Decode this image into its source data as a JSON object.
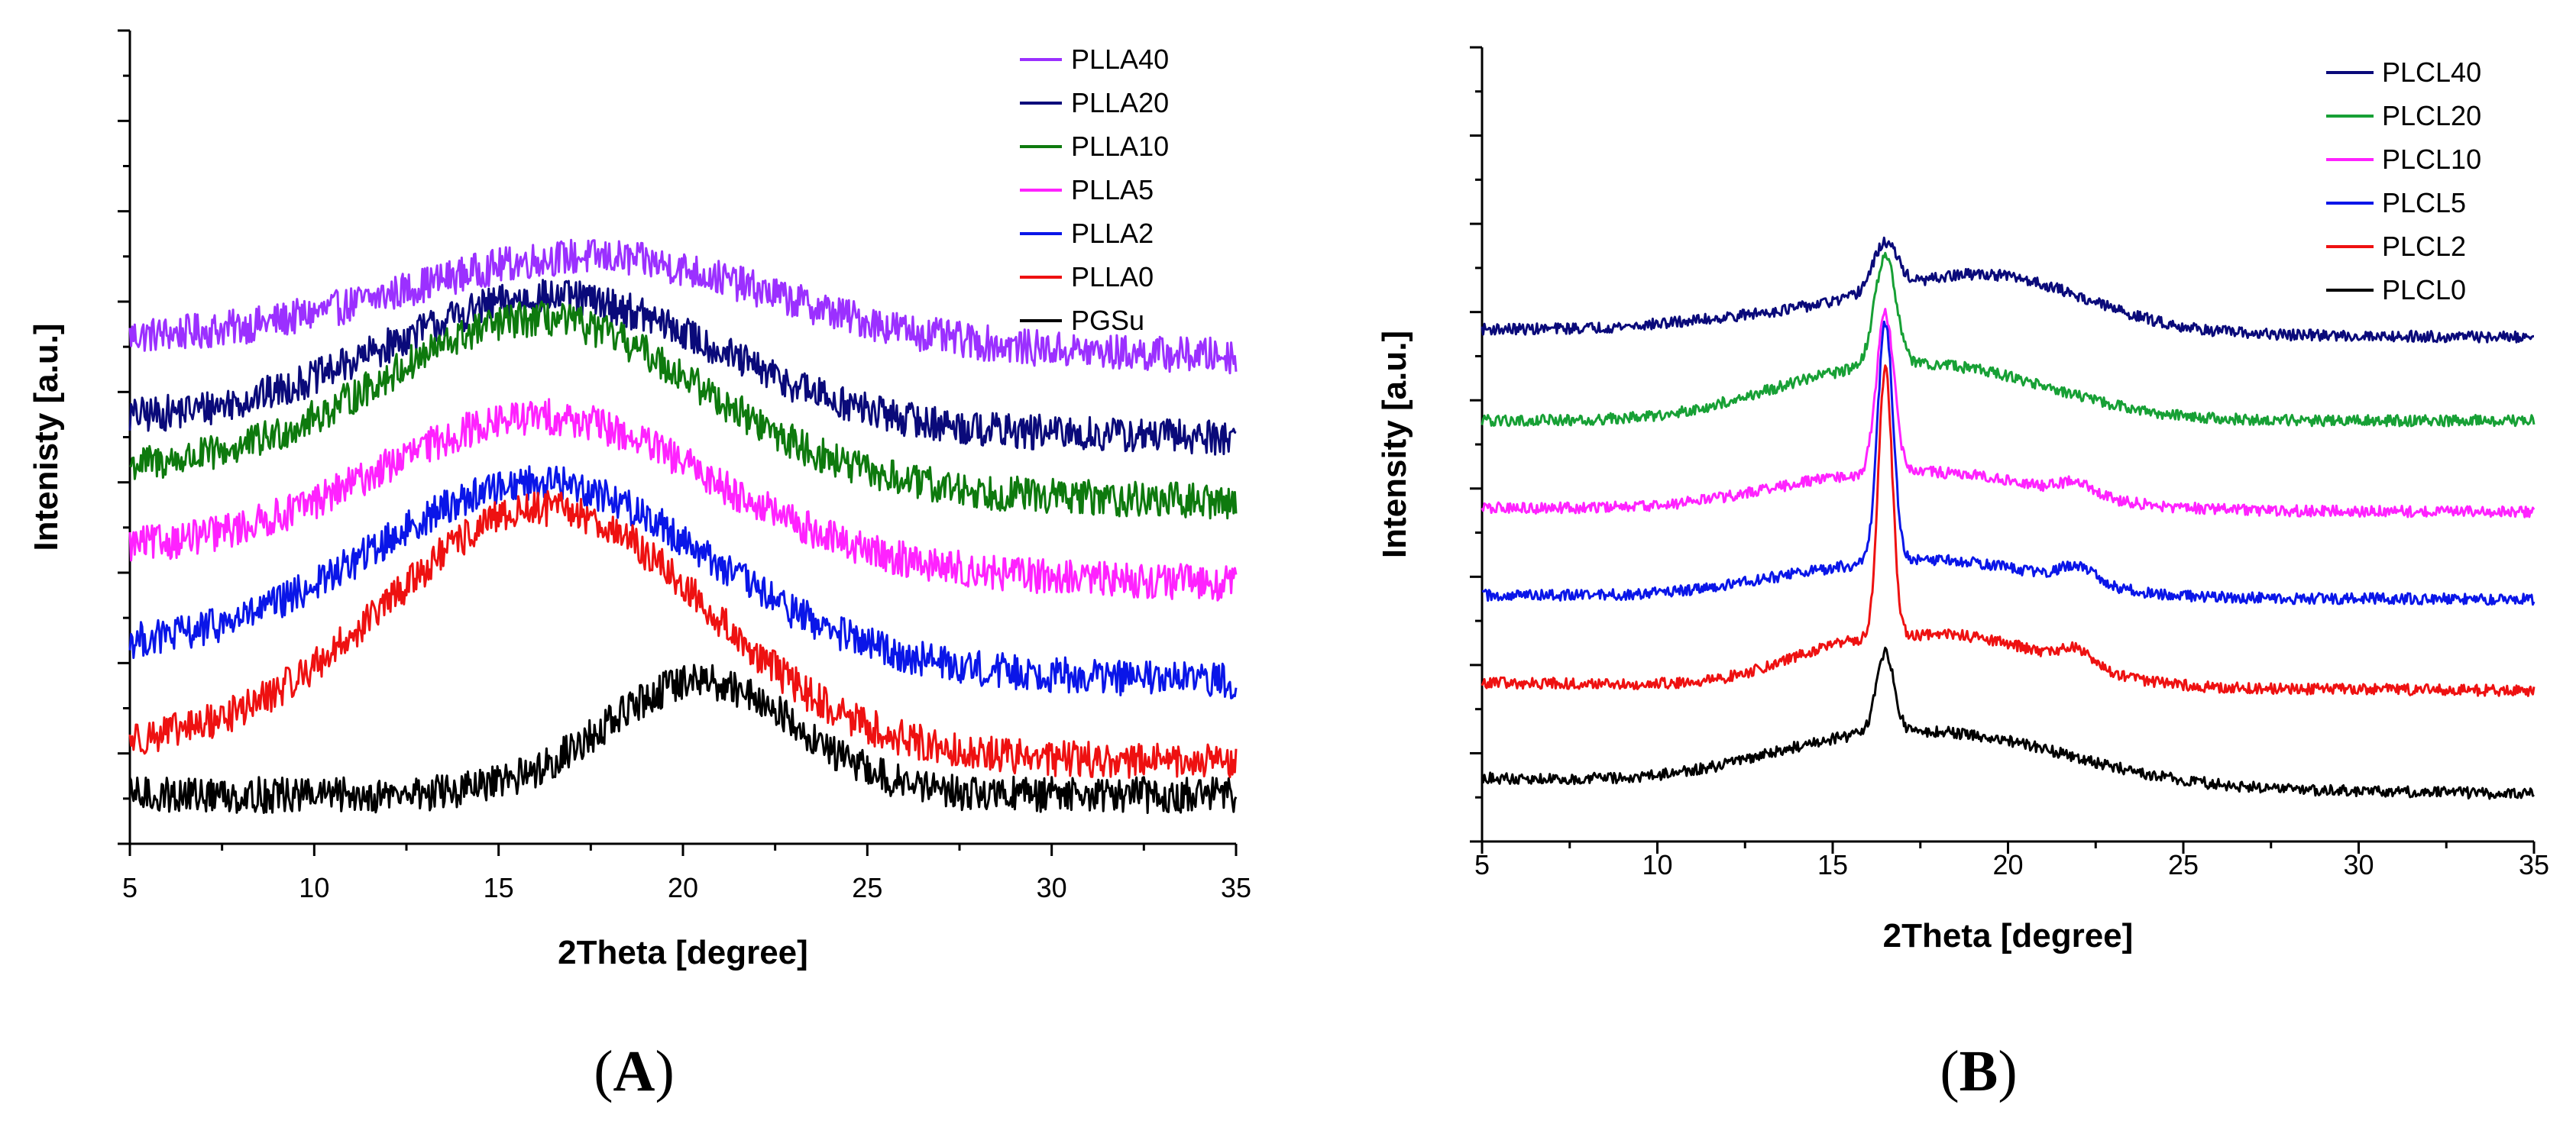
{
  "figure": {
    "panel_labels": [
      {
        "open": "(",
        "letter": "A",
        "close": ")"
      },
      {
        "open": "(",
        "letter": "B",
        "close": ")"
      }
    ]
  },
  "chart_data": [
    {
      "id": "A",
      "type": "line",
      "title": "",
      "xlabel": "2Theta [degree]",
      "ylabel": "Intenisty [a.u.]",
      "xlim": [
        5,
        35
      ],
      "ylim": [
        0,
        100
      ],
      "xticks": [
        5,
        10,
        15,
        20,
        25,
        30,
        35
      ],
      "x_tick_labels": [
        "5",
        "10",
        "15",
        "20",
        "25",
        "30",
        "35"
      ],
      "y_tick_labels_shown": false,
      "legend_position": "top-right",
      "noise": 2.2,
      "series": [
        {
          "name": "PLLA40",
          "color": "#9b30ff",
          "baseline": 66,
          "profile": {
            "start": 62,
            "end": 60,
            "peaks": [
              {
                "center": 17.5,
                "height": 11,
                "width": 5.0
              }
            ]
          }
        },
        {
          "name": "PLLA20",
          "color": "#0a0a7a",
          "baseline": 54,
          "profile": {
            "start": 52,
            "end": 50,
            "peaks": [
              {
                "center": 16.5,
                "height": 16,
                "width": 4.5
              }
            ]
          }
        },
        {
          "name": "PLLA10",
          "color": "#0e7a0e",
          "baseline": 48,
          "profile": {
            "start": 46,
            "end": 42,
            "peaks": [
              {
                "center": 16.2,
                "height": 20,
                "width": 4.3
              }
            ]
          }
        },
        {
          "name": "PLLA5",
          "color": "#ff22ff",
          "baseline": 34,
          "profile": {
            "start": 36,
            "end": 32,
            "peaks": [
              {
                "center": 16.3,
                "height": 18,
                "width": 4.5
              }
            ]
          }
        },
        {
          "name": "PLLA2",
          "color": "#0a16e8",
          "baseline": 22,
          "profile": {
            "start": 24,
            "end": 20,
            "peaks": [
              {
                "center": 16.2,
                "height": 22,
                "width": 4.5
              }
            ]
          }
        },
        {
          "name": "PLLA0",
          "color": "#ee1111",
          "baseline": 10,
          "profile": {
            "start": 12,
            "end": 10,
            "peaks": [
              {
                "center": 16.3,
                "height": 30,
                "width": 4.3
              }
            ]
          }
        },
        {
          "name": "PGSu",
          "color": "#000000",
          "baseline": 0,
          "profile": {
            "start": 6,
            "end": 6,
            "peaks": [
              {
                "center": 20.5,
                "height": 14,
                "width": 2.6
              }
            ]
          }
        }
      ]
    },
    {
      "id": "B",
      "type": "line",
      "title": "",
      "xlabel": "2Theta [degree]",
      "ylabel": "Intensity [a.u.]",
      "xlim": [
        5,
        35
      ],
      "ylim": [
        0,
        100
      ],
      "xticks": [
        5,
        10,
        15,
        20,
        25,
        30,
        35
      ],
      "x_tick_labels": [
        "5",
        "10",
        "15",
        "20",
        "25",
        "30",
        "35"
      ],
      "y_tick_labels_shown": false,
      "legend_position": "top-right",
      "noise": 0.7,
      "series": [
        {
          "name": "PLCL40",
          "color": "#0a0a7a",
          "baseline": 62,
          "profile": {
            "start": 64.5,
            "end": 63.5,
            "peaks": [
              {
                "center": 16.5,
                "height": 6,
                "width": 0.35
              },
              {
                "center": 19.5,
                "height": 7,
                "width": 2.8
              },
              {
                "center": 14,
                "height": 2,
                "width": 3
              }
            ]
          }
        },
        {
          "name": "PLCL20",
          "color": "#17a035",
          "baseline": 50,
          "profile": {
            "start": 53,
            "end": 53,
            "peaks": [
              {
                "center": 16.5,
                "height": 14,
                "width": 0.3
              },
              {
                "center": 18.5,
                "height": 6,
                "width": 3
              },
              {
                "center": 14.5,
                "height": 3,
                "width": 2.5
              }
            ]
          }
        },
        {
          "name": "PLCL10",
          "color": "#ff22ff",
          "baseline": 39,
          "profile": {
            "start": 42,
            "end": 41.5,
            "peaks": [
              {
                "center": 16.5,
                "height": 20,
                "width": 0.25
              },
              {
                "center": 18.5,
                "height": 4,
                "width": 3
              },
              {
                "center": 22,
                "height": 1.5,
                "width": 0.5
              },
              {
                "center": 14.5,
                "height": 2,
                "width": 2.5
              }
            ]
          }
        },
        {
          "name": "PLCL5",
          "color": "#0a16e8",
          "baseline": 28,
          "profile": {
            "start": 31,
            "end": 30.5,
            "peaks": [
              {
                "center": 16.5,
                "height": 30,
                "width": 0.22
              },
              {
                "center": 18.7,
                "height": 4,
                "width": 2.8
              },
              {
                "center": 22,
                "height": 2,
                "width": 0.5
              },
              {
                "center": 14.5,
                "height": 2,
                "width": 2.5
              }
            ]
          }
        },
        {
          "name": "PLCL2",
          "color": "#ee1111",
          "baseline": 17,
          "profile": {
            "start": 20,
            "end": 19,
            "peaks": [
              {
                "center": 16.5,
                "height": 34,
                "width": 0.2
              },
              {
                "center": 18.8,
                "height": 6,
                "width": 2.6
              },
              {
                "center": 22,
                "height": 2,
                "width": 0.5
              },
              {
                "center": 15,
                "height": 3,
                "width": 1.8
              }
            ]
          }
        },
        {
          "name": "PLCL0",
          "color": "#000000",
          "baseline": 6,
          "profile": {
            "start": 8,
            "end": 6,
            "peaks": [
              {
                "center": 16.5,
                "height": 10,
                "width": 0.25
              },
              {
                "center": 18.5,
                "height": 6,
                "width": 3.5
              },
              {
                "center": 14.5,
                "height": 2,
                "width": 2.5
              }
            ]
          }
        }
      ]
    }
  ]
}
